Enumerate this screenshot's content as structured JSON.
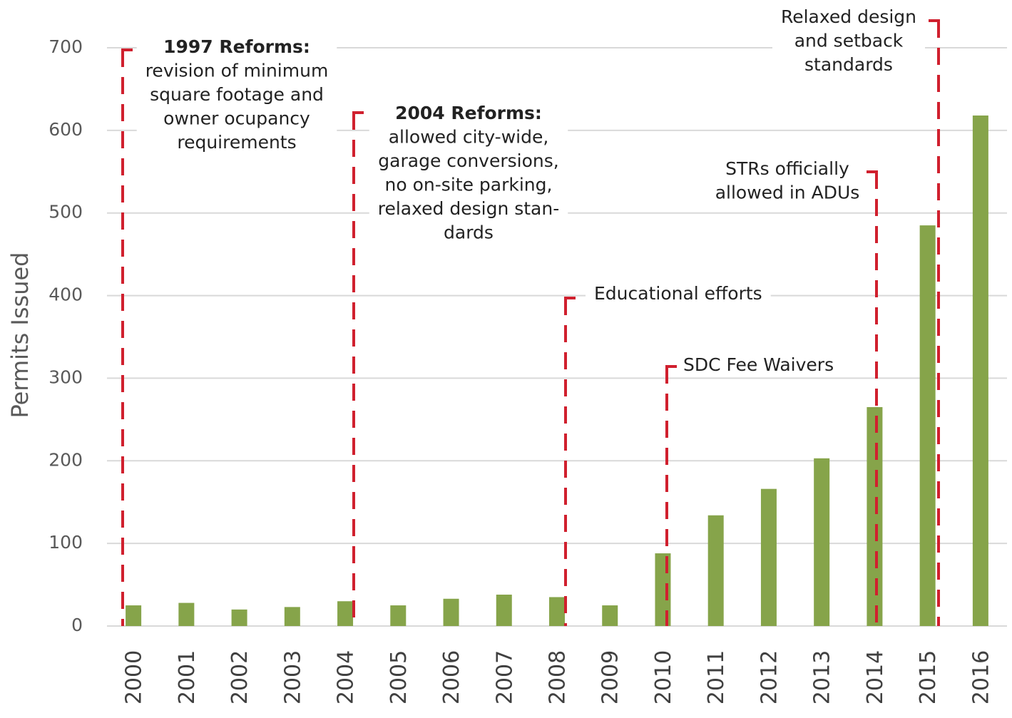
{
  "chart_data": {
    "type": "bar",
    "y_label": "Permits Issued",
    "categories": [
      "2000",
      "2001",
      "2002",
      "2003",
      "2004",
      "2005",
      "2006",
      "2007",
      "2008",
      "2009",
      "2010",
      "2011",
      "2012",
      "2013",
      "2014",
      "2015",
      "2016"
    ],
    "values": [
      25,
      28,
      20,
      23,
      30,
      25,
      33,
      38,
      35,
      25,
      88,
      134,
      166,
      203,
      265,
      485,
      618
    ],
    "color": "#86a44a",
    "ylim": [
      0,
      700
    ],
    "yticks": [
      0,
      100,
      200,
      300,
      400,
      500,
      600,
      700
    ],
    "grid": true,
    "annotation_color": "#d0202e",
    "annotations": [
      {
        "title": "1997 Reforms:",
        "lines": [
          "revision of minimum",
          "square footage and",
          "owner ocupancy",
          "requirements"
        ]
      },
      {
        "title": "2004 Reforms:",
        "lines": [
          "allowed city-wide,",
          "garage conversions,",
          "no on-site parking,",
          "relaxed design stan-",
          "dards"
        ]
      },
      {
        "lines": [
          "Educational efforts"
        ]
      },
      {
        "lines": [
          "SDC Fee Waivers"
        ]
      },
      {
        "lines": [
          "STRs officially",
          "allowed in ADUs"
        ]
      },
      {
        "lines": [
          "Relaxed design",
          "and setback",
          "standards"
        ]
      }
    ]
  }
}
